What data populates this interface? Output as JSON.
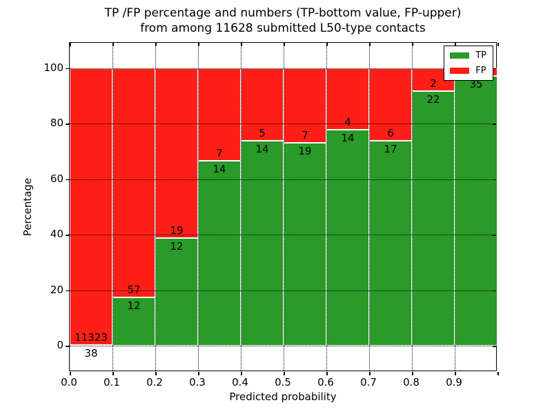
{
  "title": {
    "line1": "TP /FP percentage and numbers (TP-bottom value, FP-upper)",
    "line2": "from among 11628 submitted L50-type contacts"
  },
  "axes": {
    "xlabel": "Predicted probability",
    "ylabel": "Percentage",
    "xtick_labels": [
      "0.0",
      "0.1",
      "0.2",
      "0.3",
      "0.4",
      "0.5",
      "0.6",
      "0.7",
      "0.8",
      "0.9"
    ],
    "ytick_values": [
      0,
      20,
      40,
      60,
      80,
      100
    ]
  },
  "legend": {
    "position": "upper right",
    "items": [
      {
        "label": "TP",
        "color": "#2a9a28"
      },
      {
        "label": "FP",
        "color": "#ff1f16"
      }
    ]
  },
  "colors": {
    "tp_green": "#2a9a28",
    "fp_red": "#ff1f16",
    "grid": "#000000",
    "background": "#ffffff"
  },
  "chart_data": {
    "type": "bar",
    "stacked": true,
    "normalized_to_percent": true,
    "title": "TP /FP percentage and numbers (TP-bottom value, FP-upper) from among 11628 submitted L50-type contacts",
    "xlabel": "Predicted probability",
    "ylabel": "Percentage",
    "categories": [
      "0.0-0.1",
      "0.1-0.2",
      "0.2-0.3",
      "0.3-0.4",
      "0.4-0.5",
      "0.5-0.6",
      "0.6-0.7",
      "0.7-0.8",
      "0.8-0.9",
      "0.9-1.0"
    ],
    "series": [
      {
        "name": "TP",
        "stack_position": "bottom",
        "color": "#2a9a28",
        "counts": [
          38,
          12,
          12,
          14,
          14,
          19,
          14,
          17,
          22,
          35
        ]
      },
      {
        "name": "FP",
        "stack_position": "top",
        "color": "#ff1f16",
        "counts": [
          11323,
          57,
          19,
          7,
          5,
          7,
          4,
          6,
          2,
          null
        ]
      }
    ],
    "tp_percent": [
      0.33,
      17.39,
      38.71,
      66.67,
      73.68,
      73.08,
      77.78,
      73.91,
      91.67,
      97.2
    ],
    "note": "FP count label of the 0.9-1.0 bin is hidden behind the legend box; each column is normalized to 100%",
    "ylim_shown": [
      0,
      100
    ],
    "grid": "dotted, drawn over bars",
    "legend_position": "upper right"
  }
}
